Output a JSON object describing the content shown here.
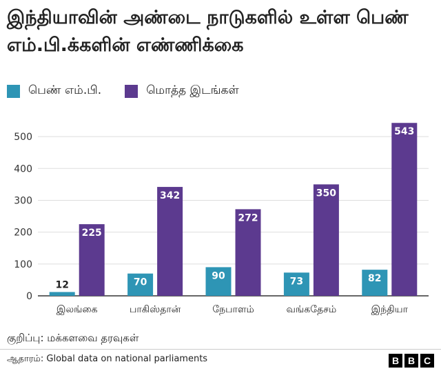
{
  "title": "இந்தியாவின் அண்டை நாடுகளில் உள்ள பெண் எம்.பி.க்களின் எண்ணிக்கை",
  "legend": [
    {
      "label": "பெண் எம்.பி.",
      "color": "#2e95b5"
    },
    {
      "label": "மொத்த இடங்கள்",
      "color": "#5c3a8f"
    }
  ],
  "chart_data": {
    "type": "bar",
    "categories": [
      "இலங்கை",
      "பாகிஸ்தான்",
      "நேபாளம்",
      "வங்கதேசம்",
      "இந்தியா"
    ],
    "series": [
      {
        "name": "பெண் எம்.பி.",
        "values": [
          12,
          70,
          90,
          73,
          82
        ],
        "color": "#2e95b5"
      },
      {
        "name": "மொத்த இடங்கள்",
        "values": [
          225,
          342,
          272,
          350,
          543
        ],
        "color": "#5c3a8f"
      }
    ],
    "yticks": [
      0,
      100,
      200,
      300,
      400,
      500
    ],
    "ylim": [
      0,
      550
    ],
    "grid": true,
    "legend_position": "top-left"
  },
  "note": "குறிப்பு: மக்களவை தரவுகள்",
  "source": "ஆதாரம்: Global data on national parliaments",
  "logo": [
    "B",
    "B",
    "C"
  ]
}
